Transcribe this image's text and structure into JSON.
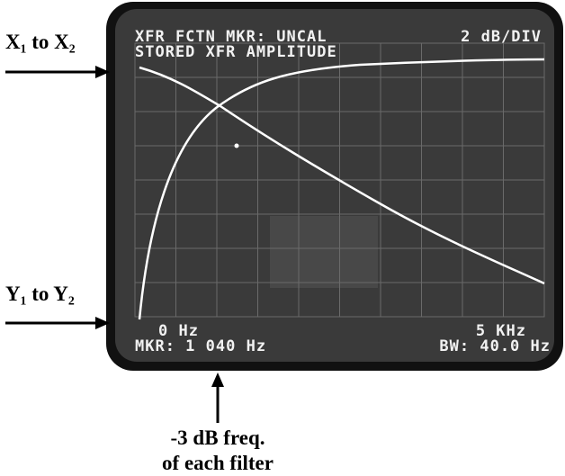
{
  "screen": {
    "header_left": "XFR FCTN MKR: UNCAL",
    "header_right": "2 dB/DIV",
    "subtitle": "STORED XFR AMPLITUDE",
    "x_start": "0 Hz",
    "x_end": "5 KHz",
    "marker": "MKR: 1 040 Hz",
    "bandwidth": "BW: 40.0 Hz"
  },
  "annotations": {
    "x_trace": "X₁ to X₂",
    "y_trace": "Y₁ to Y₂",
    "marker_note": [
      "-3 dB freq.",
      "of each filter"
    ]
  }
}
